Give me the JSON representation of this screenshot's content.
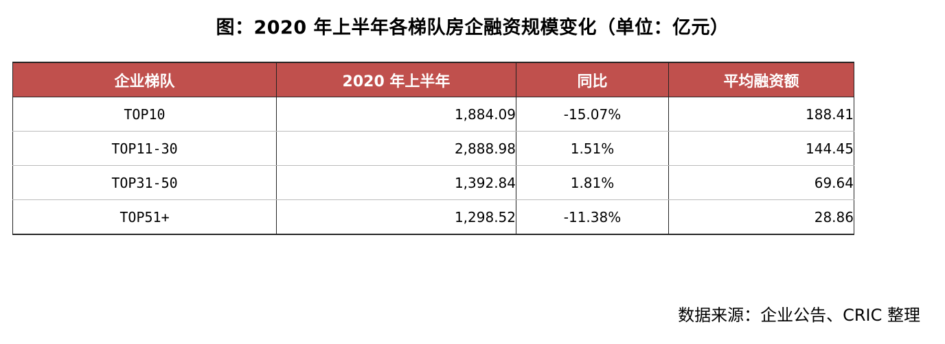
{
  "title": "图：2020 年上半年各梯队房企融资规模变化（单位：亿元）",
  "source": "数据来源：企业公告、CRIC 整理",
  "colors": {
    "header_bg": "#c0504d",
    "header_text": "#ffffff",
    "border": "#222222"
  },
  "chart_data": {
    "type": "table",
    "title": "图：2020 年上半年各梯队房企融资规模变化（单位：亿元）",
    "columns": [
      "企业梯队",
      "2020 年上半年",
      "同比",
      "平均融资额"
    ],
    "rows": [
      [
        "TOP10",
        "1,884.09",
        "-15.07%",
        "188.41"
      ],
      [
        "TOP11-30",
        "2,888.98",
        "1.51%",
        "144.45"
      ],
      [
        "TOP31-50",
        "1,392.84",
        "1.81%",
        "69.64"
      ],
      [
        "TOP51+",
        "1,298.52",
        "-11.38%",
        "28.86"
      ]
    ]
  }
}
